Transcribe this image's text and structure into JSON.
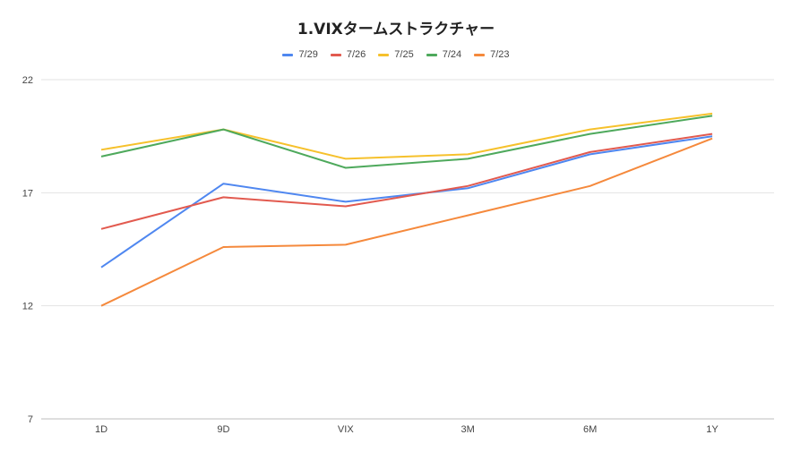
{
  "chart_data": {
    "type": "line",
    "title": "1.VIXタームストラクチャー",
    "xlabel": "",
    "ylabel": "",
    "categories": [
      "1D",
      "9D",
      "VIX",
      "3M",
      "6M",
      "1Y"
    ],
    "yticks": [
      "22",
      "17",
      "12",
      "7"
    ],
    "ylim": [
      7,
      22
    ],
    "grid": true,
    "legend_position": "top",
    "series": [
      {
        "name": "7/29",
        "color": "#4f87f0",
        "values": [
          13.7,
          17.4,
          16.6,
          17.2,
          18.7,
          19.5
        ]
      },
      {
        "name": "7/26",
        "color": "#e25a4f",
        "values": [
          15.4,
          16.8,
          16.4,
          17.3,
          18.8,
          19.6
        ]
      },
      {
        "name": "7/25",
        "color": "#f6c12c",
        "values": [
          18.9,
          19.8,
          18.5,
          18.7,
          19.8,
          20.5
        ]
      },
      {
        "name": "7/24",
        "color": "#4ea95c",
        "values": [
          18.6,
          19.8,
          18.1,
          18.5,
          19.6,
          20.4
        ]
      },
      {
        "name": "7/23",
        "color": "#f5893c",
        "values": [
          12.0,
          14.6,
          14.7,
          16.0,
          17.3,
          19.4
        ]
      }
    ]
  }
}
